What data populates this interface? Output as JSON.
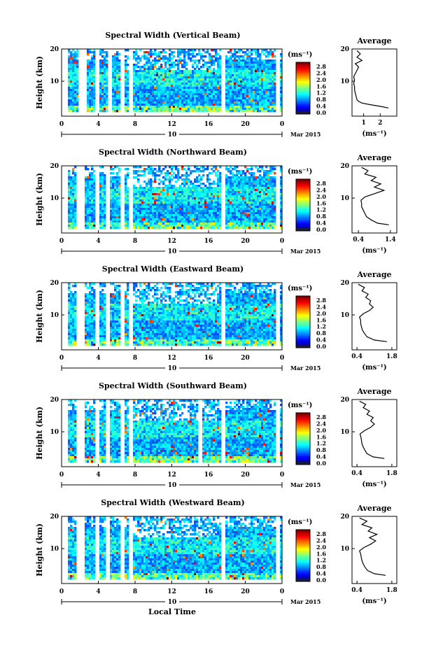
{
  "chart_data": [
    {
      "type": "heatmap",
      "title": "Spectral Width (Vertical Beam)",
      "ylabel": "Height (km)",
      "yticks": [
        "20",
        "10"
      ],
      "xticks": [
        "0",
        "4",
        "8",
        "12",
        "16",
        "20",
        "0"
      ],
      "date_marker": "10",
      "date_label": "Mar 2015",
      "colorbar": {
        "unit": "(ms⁻¹)",
        "ticks": [
          "2.8",
          "2.4",
          "2.0",
          "1.6",
          "1.2",
          "0.8",
          "0.4",
          "0.0"
        ]
      },
      "average": {
        "title": "Average",
        "yticks": [
          "20",
          "10"
        ],
        "xticks": [
          "1",
          "2"
        ],
        "xlabel": "(ms⁻¹)",
        "xlim": [
          0.3,
          3.0
        ],
        "profile_height_km": [
          2.5,
          3,
          3.5,
          4,
          4.5,
          5,
          6,
          7,
          8,
          9,
          10,
          11,
          12,
          13,
          14,
          15,
          16,
          17,
          18,
          19,
          20
        ],
        "profile_value": [
          2.5,
          2.0,
          1.4,
          0.9,
          0.7,
          0.6,
          0.55,
          0.5,
          0.45,
          0.45,
          0.4,
          0.45,
          0.4,
          0.5,
          0.6,
          0.7,
          0.5,
          0.9,
          0.6,
          0.8,
          0.6
        ]
      },
      "gaps_local_time_h": [
        [
          0,
          0.6
        ],
        [
          1.8,
          2.7
        ],
        [
          3.7,
          4.2
        ],
        [
          5.0,
          5.4
        ],
        [
          6.3,
          6.8
        ],
        [
          7.3,
          7.8
        ],
        [
          17.3,
          17.8
        ],
        [
          23.4,
          23.7
        ]
      ]
    },
    {
      "type": "heatmap",
      "title": "Spectral Width (Northward Beam)",
      "ylabel": "Height (km)",
      "yticks": [
        "20",
        "10"
      ],
      "xticks": [
        "0",
        "4",
        "8",
        "12",
        "16",
        "20",
        "0"
      ],
      "date_marker": "10",
      "date_label": "Mar 2015",
      "colorbar": {
        "unit": "(ms⁻¹)",
        "ticks": [
          "2.8",
          "2.4",
          "2.0",
          "1.6",
          "1.2",
          "0.8",
          "0.4",
          "0.0"
        ]
      },
      "average": {
        "title": "Average",
        "yticks": [
          "20",
          "10"
        ],
        "xticks": [
          "0.4",
          "1.4"
        ],
        "xlabel": "(ms⁻¹)",
        "xlim": [
          0.2,
          1.6
        ],
        "profile_height_km": [
          2.5,
          3,
          4,
          5,
          6,
          7,
          8,
          9,
          10,
          11,
          12,
          13,
          14,
          15,
          16,
          17,
          18,
          19,
          20
        ],
        "profile_value": [
          1.35,
          1.0,
          0.8,
          0.65,
          0.6,
          0.55,
          0.5,
          0.5,
          0.48,
          0.6,
          0.9,
          1.2,
          0.9,
          1.1,
          0.8,
          0.95,
          0.6,
          0.7,
          0.5
        ]
      },
      "gaps_local_time_h": [
        [
          0,
          0.6
        ],
        [
          1.7,
          2.6
        ],
        [
          3.6,
          4.1
        ],
        [
          4.9,
          5.3
        ],
        [
          6.3,
          6.8
        ],
        [
          7.3,
          7.8
        ],
        [
          17.4,
          17.9
        ],
        [
          23.4,
          23.7
        ]
      ]
    },
    {
      "type": "heatmap",
      "title": "Spectral Width (Eastward Beam)",
      "ylabel": "Height (km)",
      "yticks": [
        "20",
        "10"
      ],
      "xticks": [
        "0",
        "4",
        "8",
        "12",
        "16",
        "20",
        "0"
      ],
      "date_marker": "10",
      "date_label": "Mar 2015",
      "colorbar": {
        "unit": "(ms⁻¹)",
        "ticks": [
          "2.8",
          "2.4",
          "2.0",
          "1.6",
          "1.2",
          "0.8",
          "0.4",
          "0.0"
        ]
      },
      "average": {
        "title": "Average",
        "yticks": [
          "20",
          "10"
        ],
        "xticks": [
          "0.4",
          "1.8"
        ],
        "xlabel": "(ms⁻¹)",
        "xlim": [
          0.2,
          2.0
        ],
        "profile_height_km": [
          2.5,
          3,
          4,
          5,
          6,
          7,
          8,
          9,
          10,
          11,
          12,
          13,
          14,
          15,
          16,
          17,
          18,
          19,
          20
        ],
        "profile_value": [
          1.6,
          1.1,
          0.8,
          0.7,
          0.62,
          0.58,
          0.55,
          0.55,
          0.5,
          0.65,
          0.9,
          1.05,
          0.9,
          0.95,
          0.75,
          0.85,
          0.6,
          0.7,
          0.45
        ]
      },
      "gaps_local_time_h": [
        [
          0,
          0.6
        ],
        [
          1.7,
          2.6
        ],
        [
          3.6,
          4.1
        ],
        [
          4.9,
          5.3
        ],
        [
          6.3,
          6.8
        ],
        [
          7.3,
          7.8
        ],
        [
          17.4,
          17.9
        ],
        [
          23.4,
          23.7
        ]
      ]
    },
    {
      "type": "heatmap",
      "title": "Spectral Width (Southward Beam)",
      "ylabel": "Height (km)",
      "yticks": [
        "20",
        "10"
      ],
      "xticks": [
        "0",
        "4",
        "8",
        "12",
        "16",
        "20",
        "0"
      ],
      "date_marker": "10",
      "date_label": "Mar 2015",
      "colorbar": {
        "unit": "(ms⁻¹)",
        "ticks": [
          "2.8",
          "2.4",
          "2.0",
          "1.6",
          "1.2",
          "0.8",
          "0.4",
          "0.0"
        ]
      },
      "average": {
        "title": "Average",
        "yticks": [
          "20",
          "10"
        ],
        "xticks": [
          "0.4",
          "1.8"
        ],
        "xlabel": "(ms⁻¹)",
        "xlim": [
          0.2,
          2.0
        ],
        "profile_height_km": [
          2.5,
          3,
          4,
          5,
          6,
          7,
          8,
          9,
          10,
          11,
          12,
          13,
          14,
          15,
          16,
          17,
          18,
          19,
          20
        ],
        "profile_value": [
          1.5,
          1.05,
          0.8,
          0.72,
          0.65,
          0.6,
          0.58,
          0.56,
          0.52,
          0.7,
          0.95,
          1.1,
          0.95,
          1.05,
          0.8,
          0.9,
          0.65,
          0.75,
          0.5
        ]
      },
      "gaps_local_time_h": [
        [
          0,
          0.6
        ],
        [
          1.7,
          2.6
        ],
        [
          3.6,
          4.1
        ],
        [
          4.9,
          5.3
        ],
        [
          6.3,
          6.8
        ],
        [
          7.3,
          7.8
        ],
        [
          14.9,
          15.3
        ],
        [
          17.4,
          17.9
        ],
        [
          23.4,
          23.7
        ]
      ]
    },
    {
      "type": "heatmap",
      "title": "Spectral Width (Westward Beam)",
      "ylabel": "Height (km)",
      "xlabel": "Local Time",
      "yticks": [
        "20",
        "10"
      ],
      "xticks": [
        "0",
        "4",
        "8",
        "12",
        "16",
        "20",
        "0"
      ],
      "date_marker": "10",
      "date_label": "Mar 2015",
      "colorbar": {
        "unit": "(ms⁻¹)",
        "ticks": [
          "2.8",
          "2.4",
          "2.0",
          "1.6",
          "1.2",
          "0.8",
          "0.4",
          "0.0"
        ]
      },
      "average": {
        "title": "Average",
        "yticks": [
          "20",
          "10"
        ],
        "xticks": [
          "0.4",
          "1.8"
        ],
        "xlabel": "(ms⁻¹)",
        "xlim": [
          0.2,
          2.0
        ],
        "profile_height_km": [
          2.5,
          3,
          4,
          5,
          6,
          7,
          8,
          9,
          10,
          11,
          12,
          13,
          14,
          15,
          16,
          17,
          18,
          19,
          20
        ],
        "profile_value": [
          1.55,
          1.1,
          0.82,
          0.72,
          0.65,
          0.6,
          0.57,
          0.55,
          0.5,
          0.68,
          0.95,
          1.15,
          0.9,
          1.2,
          0.85,
          1.0,
          0.6,
          0.8,
          0.5
        ]
      },
      "gaps_local_time_h": [
        [
          0,
          0.6
        ],
        [
          1.7,
          2.6
        ],
        [
          3.6,
          4.1
        ],
        [
          4.9,
          5.3
        ],
        [
          6.3,
          6.8
        ],
        [
          7.3,
          7.8
        ],
        [
          17.4,
          17.9
        ],
        [
          23.4,
          23.7
        ]
      ]
    }
  ]
}
